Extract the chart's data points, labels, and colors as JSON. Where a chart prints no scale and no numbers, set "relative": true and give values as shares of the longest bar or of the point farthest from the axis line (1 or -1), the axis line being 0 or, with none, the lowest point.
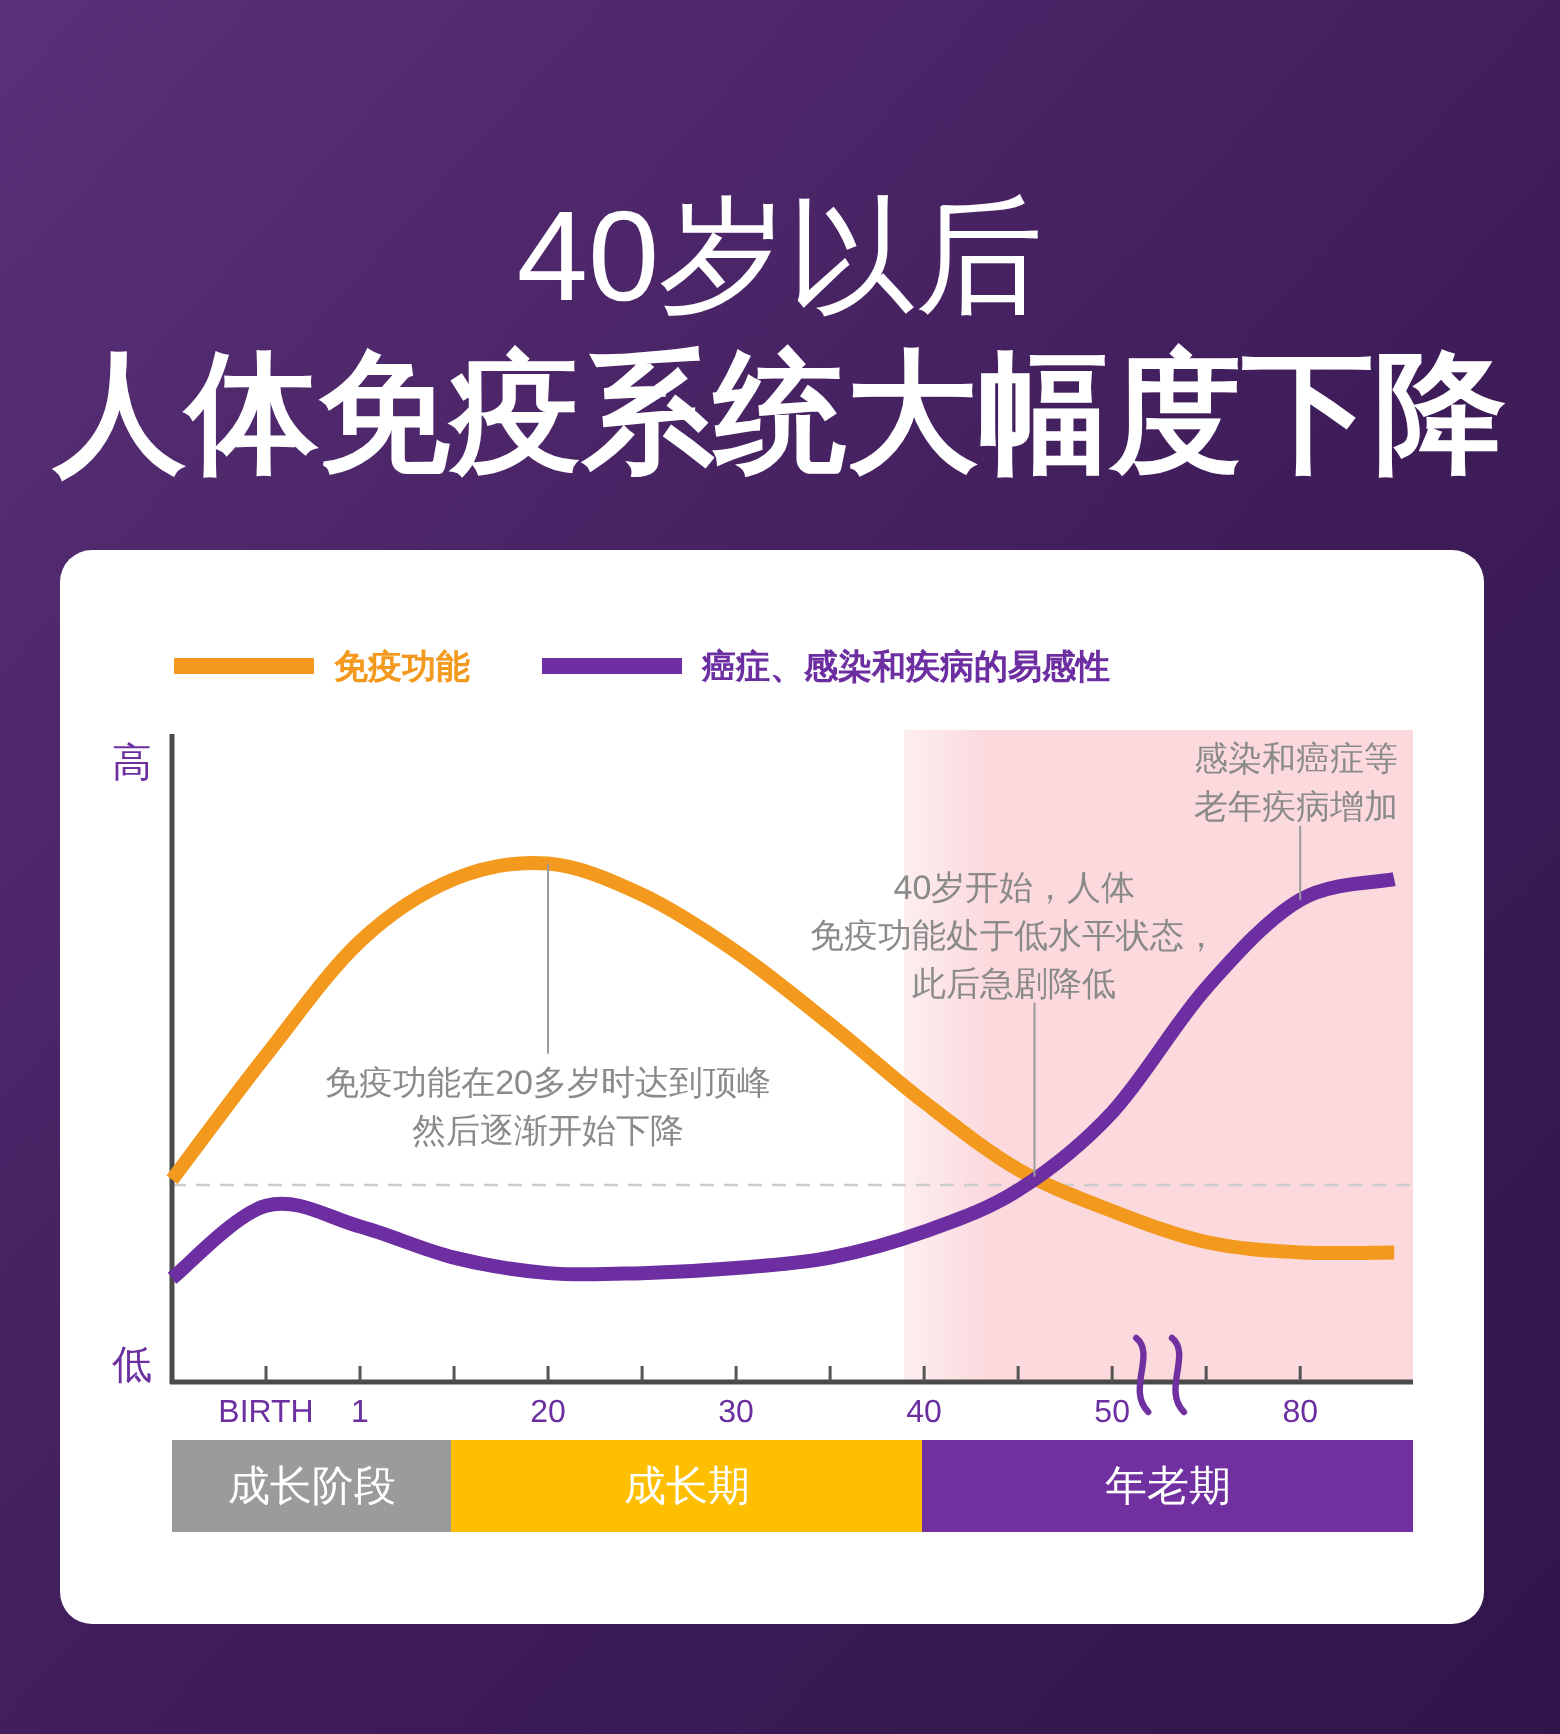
{
  "chart_data": [
    {
      "type": "line",
      "title": "40岁以后",
      "subtitle": "人体免疫系统大幅度下降",
      "relative": true,
      "categories": [
        null,
        "BIRTH",
        "1",
        null,
        "20",
        null,
        "30",
        null,
        "40",
        null,
        "50",
        null,
        "80",
        null
      ],
      "series": [
        {
          "name": "免疫功能",
          "color": "#f39a1e",
          "values": [
            0.39,
            0.63,
            0.85,
            0.97,
            1.0,
            0.94,
            0.83,
            0.69,
            0.54,
            0.41,
            0.33,
            0.27,
            0.25,
            0.25
          ]
        },
        {
          "name": "癌症、感染和疾病的易感性",
          "color": "#6c2ea0",
          "values": [
            0.2,
            0.34,
            0.3,
            0.24,
            0.21,
            0.21,
            0.22,
            0.24,
            0.29,
            0.37,
            0.52,
            0.76,
            0.93,
            0.97
          ]
        }
      ],
      "ref_lines": [
        {
          "axis": "y",
          "value": 0.38,
          "color": "#cccccc",
          "line_style": "dashed"
        }
      ],
      "annotations": [
        {
          "text": "免疫功能在20多岁时达到顶峰然后逐渐开始下降",
          "x": "20",
          "y": 1.0
        },
        "40岁开始，人体免疫功能处于低水平状态，此后急剧降低",
        {
          "text": "感染和癌症等老年疾病增加",
          "x": "80",
          "y": 0.93
        },
        "高",
        "低"
      ],
      "legend": "top left",
      "line_style": "solid"
    },
    {
      "type": "other",
      "categories": [
        "成长阶段",
        "成长期",
        "年老期"
      ],
      "colors": [
        "#9b9b9b",
        "#fdbf00",
        "#7030a0"
      ]
    }
  ]
}
